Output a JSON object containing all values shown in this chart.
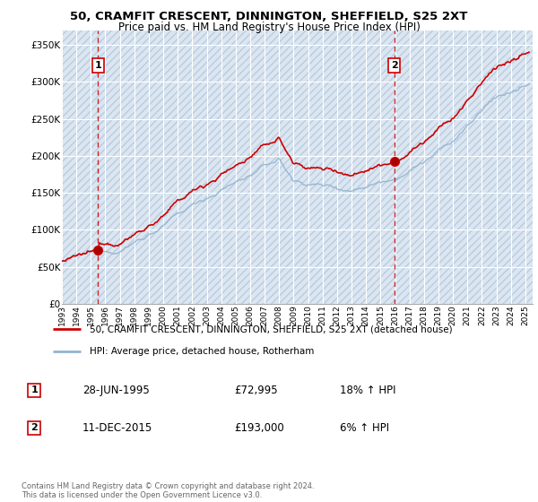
{
  "title1": "50, CRAMFIT CRESCENT, DINNINGTON, SHEFFIELD, S25 2XT",
  "title2": "Price paid vs. HM Land Registry's House Price Index (HPI)",
  "ylabel_ticks": [
    "£0",
    "£50K",
    "£100K",
    "£150K",
    "£200K",
    "£250K",
    "£300K",
    "£350K"
  ],
  "ytick_values": [
    0,
    50000,
    100000,
    150000,
    200000,
    250000,
    300000,
    350000
  ],
  "ylim": [
    0,
    370000
  ],
  "xlim_start": 1993.0,
  "xlim_end": 2025.5,
  "background_color": "#ffffff",
  "plot_bg_color": "#dce6f1",
  "hatch_color": "#c0cfe0",
  "grid_color": "#ffffff",
  "red_line_color": "#cc0000",
  "blue_line_color": "#92b4d0",
  "sale1_x": 1995.49,
  "sale1_y": 72995,
  "sale1_label": "1",
  "sale2_x": 2015.94,
  "sale2_y": 193000,
  "sale2_label": "2",
  "legend_label1": "50, CRAMFIT CRESCENT, DINNINGTON, SHEFFIELD, S25 2XT (detached house)",
  "legend_label2": "HPI: Average price, detached house, Rotherham",
  "table_row1": [
    "1",
    "28-JUN-1995",
    "£72,995",
    "18% ↑ HPI"
  ],
  "table_row2": [
    "2",
    "11-DEC-2015",
    "£193,000",
    "6% ↑ HPI"
  ],
  "footer": "Contains HM Land Registry data © Crown copyright and database right 2024.\nThis data is licensed under the Open Government Licence v3.0.",
  "xtick_years": [
    1993,
    1994,
    1995,
    1996,
    1997,
    1998,
    1999,
    2000,
    2001,
    2002,
    2003,
    2004,
    2005,
    2006,
    2007,
    2008,
    2009,
    2010,
    2011,
    2012,
    2013,
    2014,
    2015,
    2016,
    2017,
    2018,
    2019,
    2020,
    2021,
    2022,
    2023,
    2024,
    2025
  ]
}
